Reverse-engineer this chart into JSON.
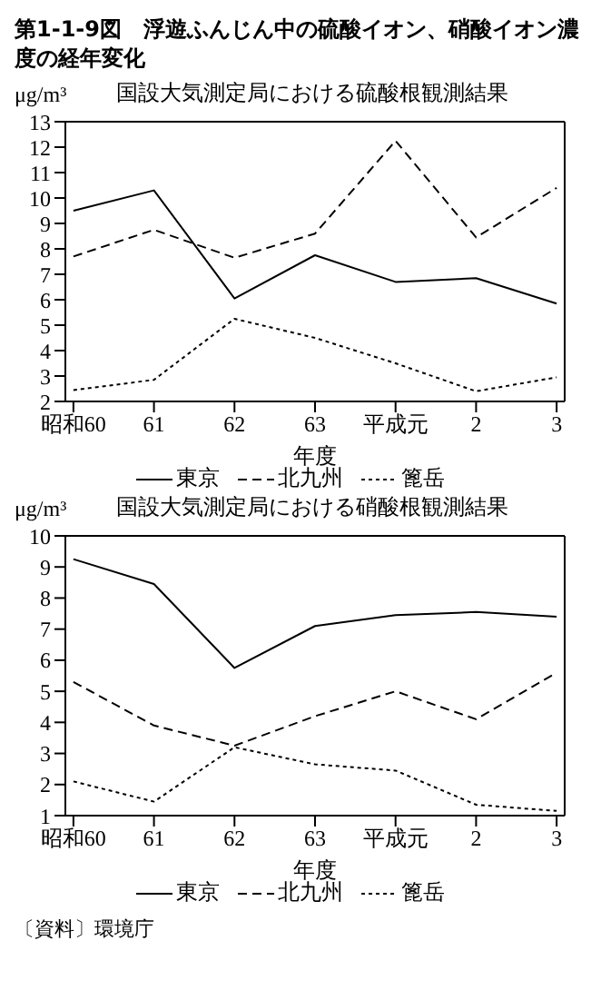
{
  "chart_data": [
    {
      "type": "line",
      "title": "第1-1-9図　浮遊ふんじん中の硫酸イオン、硝酸イオン濃度の経年変化",
      "subtitle": "国設大気測定局における硫酸根観測結果",
      "ylabel": "μg/m³",
      "xlabel": "年度",
      "categories": [
        "昭和60",
        "61",
        "62",
        "63",
        "平成元",
        "2",
        "3"
      ],
      "ylim": [
        2,
        13
      ],
      "yticks": [
        2,
        3,
        4,
        5,
        6,
        7,
        8,
        9,
        10,
        11,
        12,
        13
      ],
      "legend": "bottom",
      "series": [
        {
          "name": "東京",
          "color": "#000000",
          "line_style": "solid",
          "values": [
            9.5,
            10.3,
            6.05,
            7.75,
            6.7,
            6.85,
            5.85
          ]
        },
        {
          "name": "北九州",
          "color": "#000000",
          "line_style": "dashed",
          "values": [
            7.7,
            8.75,
            7.65,
            8.6,
            12.25,
            8.45,
            10.4
          ]
        },
        {
          "name": "篦岳",
          "color": "#000000",
          "line_style": "dotted",
          "values": [
            2.45,
            2.85,
            5.25,
            4.5,
            3.5,
            2.4,
            2.95
          ]
        }
      ]
    },
    {
      "type": "line",
      "subtitle": "国設大気測定局における硝酸根観測結果",
      "ylabel": "μg/m³",
      "xlabel": "年度",
      "categories": [
        "昭和60",
        "61",
        "62",
        "63",
        "平成元",
        "2",
        "3"
      ],
      "ylim": [
        1,
        10
      ],
      "yticks": [
        1,
        2,
        3,
        4,
        5,
        6,
        7,
        8,
        9,
        10
      ],
      "legend": "bottom",
      "annotations": [
        "〔資料〕環境庁"
      ],
      "series": [
        {
          "name": "東京",
          "color": "#000000",
          "line_style": "solid",
          "values": [
            9.25,
            8.45,
            5.75,
            7.1,
            7.45,
            7.55,
            7.4
          ]
        },
        {
          "name": "北九州",
          "color": "#000000",
          "line_style": "dashed",
          "values": [
            5.3,
            3.9,
            3.25,
            4.2,
            5.0,
            4.1,
            5.6
          ]
        },
        {
          "name": "篦岳",
          "color": "#000000",
          "line_style": "dotted",
          "values": [
            2.1,
            1.45,
            3.2,
            2.65,
            2.45,
            1.35,
            1.15
          ]
        }
      ]
    }
  ]
}
